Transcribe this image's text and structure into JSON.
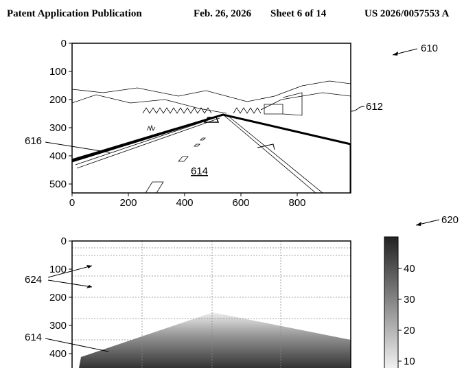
{
  "header": {
    "publication": "Patent Application Publication",
    "date": "Feb. 26, 2026",
    "sheet": "Sheet 6 of 14",
    "number": "US 2026/0057553 A"
  },
  "figure_610": {
    "ref": "610",
    "frame_ref": "612",
    "road_ref": "614",
    "line_ref": "616",
    "xticks": [
      0,
      200,
      400,
      600,
      800
    ],
    "yticks": [
      0,
      100,
      200,
      300,
      400,
      500
    ]
  },
  "figure_620": {
    "ref": "620",
    "region_ref": "624",
    "road_ref": "614",
    "yticks": [
      0,
      100,
      200,
      300,
      400
    ],
    "colorbar_ticks": [
      10,
      20,
      30,
      40
    ]
  }
}
